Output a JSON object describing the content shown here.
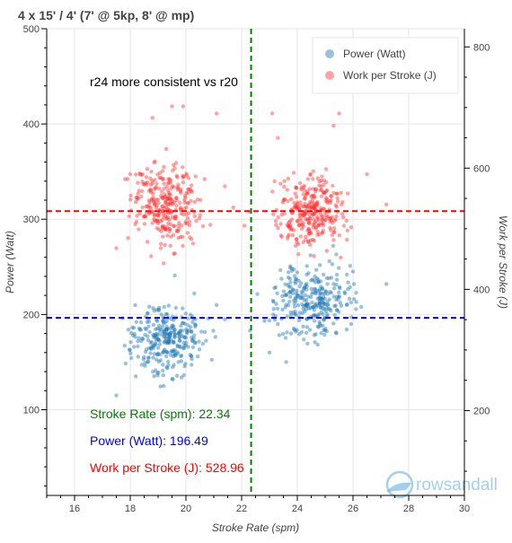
{
  "chart_data": {
    "type": "scatter",
    "title": "4 x 15' / 4' (7' @ 5kp, 8' @ mp)",
    "xlabel": "Stroke Rate (spm)",
    "ylabel": "Power (Watt)",
    "y2label": "Work per Stroke (J)",
    "xlim": [
      15,
      30
    ],
    "ylim": [
      10,
      500
    ],
    "y2lim": [
      60,
      830
    ],
    "x_ticks": [
      16,
      18,
      20,
      22,
      24,
      26,
      28,
      30
    ],
    "y_ticks": [
      100,
      200,
      300,
      400,
      500
    ],
    "y2_ticks": [
      200,
      400,
      600,
      800
    ],
    "grid": true,
    "legend_position": "top-right",
    "series": [
      {
        "name": "Power (Watt)",
        "axis": "left",
        "color": "#1f77b4",
        "clusters": [
          {
            "center": [
              19.3,
              172
            ],
            "spread": [
              0.6,
              16
            ],
            "count": 300
          },
          {
            "center": [
              24.5,
              215
            ],
            "spread": [
              0.7,
              20
            ],
            "count": 300
          }
        ],
        "points": [
          [
            17.5,
            115
          ],
          [
            19.6,
            241
          ],
          [
            20.3,
            222
          ],
          [
            21.1,
            210
          ],
          [
            21.4,
            195
          ],
          [
            18.2,
            135
          ],
          [
            19.2,
            125
          ],
          [
            22.3,
            183
          ],
          [
            23.0,
            160
          ],
          [
            23.6,
            150
          ],
          [
            25.4,
            263
          ],
          [
            25.9,
            251
          ],
          [
            26.0,
            245
          ],
          [
            27.2,
            232
          ],
          [
            24.4,
            277
          ]
        ]
      },
      {
        "name": "Work per Stroke (J)",
        "axis": "right",
        "color": "#ff3030",
        "clusters": [
          {
            "center": [
              19.3,
              540
            ],
            "spread": [
              0.6,
              35
            ],
            "count": 300
          },
          {
            "center": [
              24.5,
              528
            ],
            "spread": [
              0.6,
              28
            ],
            "count": 300
          }
        ],
        "points": [
          [
            19.5,
            702
          ],
          [
            19.9,
            702
          ],
          [
            21.1,
            690
          ],
          [
            18.8,
            683
          ],
          [
            17.5,
            468
          ],
          [
            21.4,
            570
          ],
          [
            21.7,
            535
          ],
          [
            22.3,
            528
          ],
          [
            22.1,
            505
          ],
          [
            23.1,
            690
          ],
          [
            23.3,
            650
          ],
          [
            25.5,
            690
          ],
          [
            25.3,
            670
          ],
          [
            26.5,
            590
          ],
          [
            27.2,
            540
          ],
          [
            24.6,
            455
          ]
        ]
      }
    ],
    "reference_lines": [
      {
        "orientation": "vertical",
        "axis": "x",
        "value": 22.34,
        "color": "#008000"
      },
      {
        "orientation": "horizontal",
        "axis": "left",
        "value": 196.49,
        "color": "#0000ff"
      },
      {
        "orientation": "horizontal",
        "axis": "right",
        "value": 528.96,
        "color": "#ff0000"
      }
    ],
    "annotations": [
      {
        "text": "r24 more consistent vs r20",
        "color": "#000000"
      },
      {
        "text": "Stroke Rate (spm): 22.34",
        "color": "#008000"
      },
      {
        "text": "Power (Watt): 196.49",
        "color": "#0000ff"
      },
      {
        "text": "Work per Stroke (J): 528.96",
        "color": "#ff0000"
      }
    ],
    "watermark": "rowsandall"
  }
}
